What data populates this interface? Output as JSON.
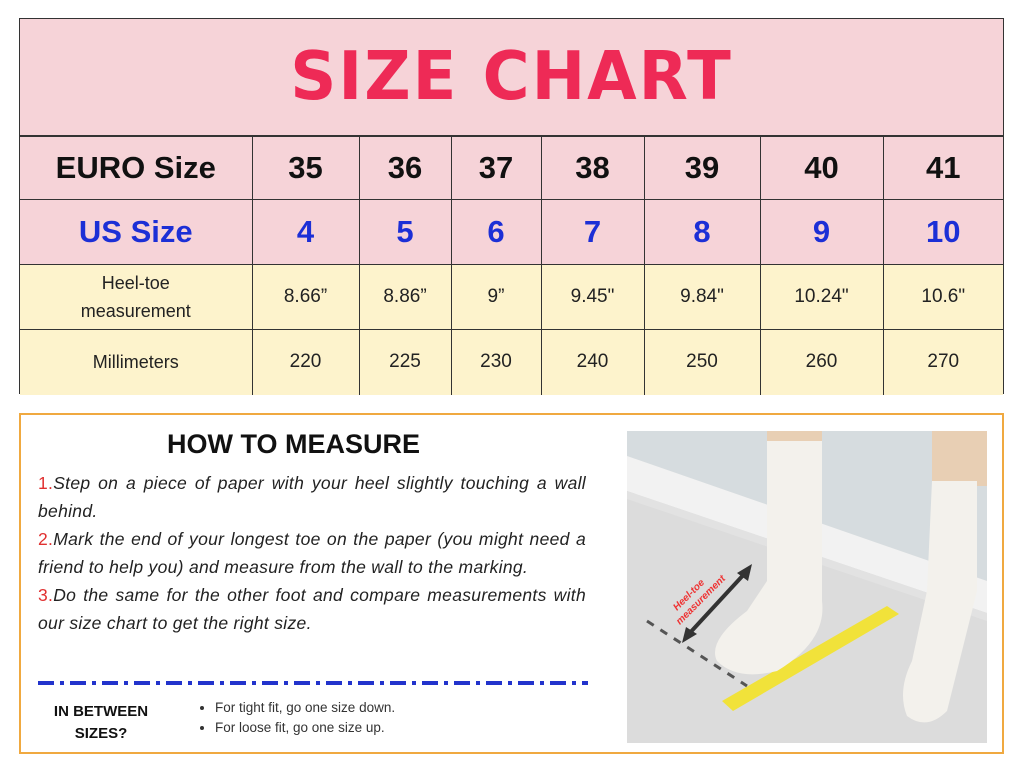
{
  "title": "SIZE CHART",
  "table": {
    "euro": {
      "label": "EURO Size",
      "values": [
        "35",
        "36",
        "37",
        "38",
        "39",
        "40",
        "41"
      ]
    },
    "us": {
      "label": "US Size",
      "values": [
        "4",
        "5",
        "6",
        "7",
        "8",
        "9",
        "10"
      ]
    },
    "heel": {
      "label_line1": "Heel-toe",
      "label_line2": "measurement",
      "values": [
        "8.66”",
        "8.86”",
        "9”",
        "9.45\"",
        "9.84\"",
        "10.24\"",
        "10.6\""
      ]
    },
    "mm": {
      "label": "Millimeters",
      "values": [
        "220",
        "225",
        "230",
        "240",
        "250",
        "260",
        "270"
      ]
    }
  },
  "measure": {
    "title": "HOW TO MEASURE",
    "steps": [
      {
        "num": "1.",
        "text": "Step on a piece of paper with your heel slightly touching a wall behind."
      },
      {
        "num": "2.",
        "text": "Mark the end of your longest toe on the paper (you might need a friend to help you) and measure from the wall to the marking."
      },
      {
        "num": "3.",
        "text": "Do the same for the other foot and compare measurements with our size chart to get the right size."
      }
    ],
    "in_between": "IN BETWEEN SIZES?",
    "tips": [
      "For tight fit, go one size down.",
      "For loose fit, go one size up."
    ],
    "photo_label_1": "Heel-toe",
    "photo_label_2": "measurement"
  },
  "colors": {
    "title": "#ee2a56",
    "us": "#1c2fd6",
    "pink": "#f6d3d8",
    "cream": "#fdf3cc",
    "border": "#f0a940"
  }
}
